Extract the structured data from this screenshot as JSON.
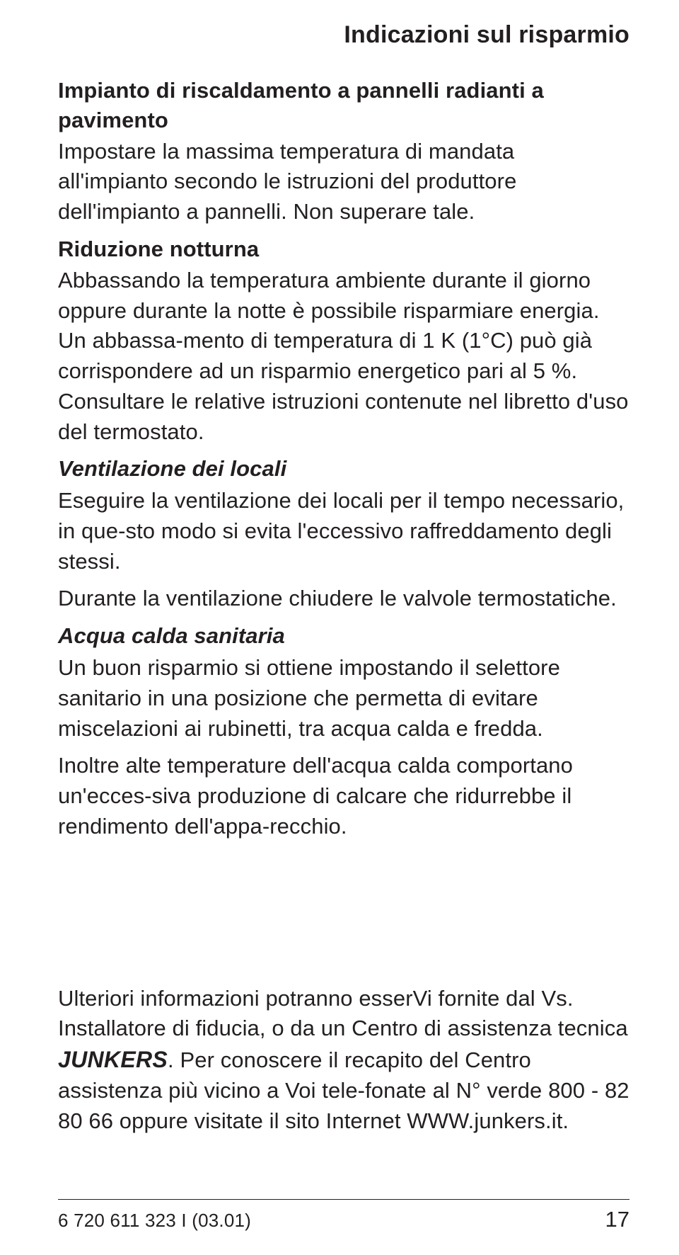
{
  "colors": {
    "text": "#231f20",
    "background": "#ffffff",
    "rule": "#231f20"
  },
  "typography": {
    "font_family": "Helvetica, Arial, sans-serif",
    "body_size_pt": 31,
    "header_size_pt": 34,
    "line_height": 1.38
  },
  "header": {
    "title": "Indicazioni sul risparmio"
  },
  "sections": {
    "radiant": {
      "title": "Impianto di riscaldamento a pannelli radianti a pavimento",
      "body": "Impostare la massima temperatura di mandata all'impianto secondo le istruzioni del produttore dell'impianto a pannelli. Non superare tale."
    },
    "night": {
      "title": "Riduzione notturna",
      "body": "Abbassando la temperatura ambiente durante il giorno oppure durante la notte è possibile risparmiare energia. Un abbassa-mento di temperatura di 1 K (1°C) può già corrispondere ad un risparmio energetico pari al 5 %. Consultare le relative istruzioni contenute nel libretto d'uso del termostato."
    },
    "ventilation": {
      "title": "Ventilazione dei locali",
      "body1": "Eseguire la ventilazione dei locali per il tempo necessario, in que-sto modo si evita l'eccessivo raffreddamento degli stessi.",
      "body2": "Durante la ventilazione chiudere le valvole termostatiche."
    },
    "hotwater": {
      "title": "Acqua calda sanitaria",
      "body1": "Un buon risparmio si ottiene impostando il selettore sanitario in una posizione che permetta di evitare miscelazioni ai rubinetti, tra acqua calda e fredda.",
      "body2": "Inoltre alte temperature dell'acqua calda comportano un'ecces-siva produzione di calcare che ridurrebbe il rendimento dell'appa-recchio."
    }
  },
  "further": {
    "pre": "Ulteriori informazioni potranno esserVi fornite dal Vs. Installatore di fiducia, o da un Centro di assistenza tecnica ",
    "brand": "JUNKERS",
    "post": ". Per conoscere il recapito del Centro assistenza più vicino a Voi tele-fonate al N° verde 800 - 82 80 66 oppure visitate il sito Internet WWW.junkers.it."
  },
  "footer": {
    "doc_code": "6 720 611 323 I (03.01)",
    "page_number": "17"
  }
}
